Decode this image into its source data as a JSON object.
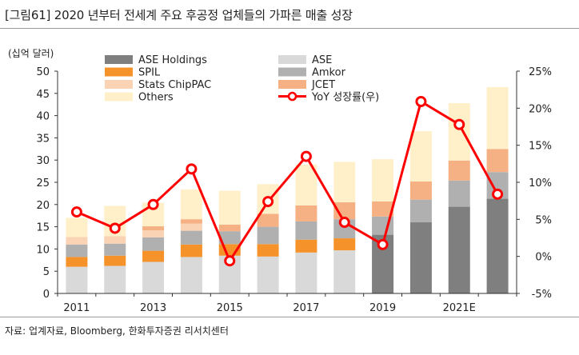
{
  "title": "[그림61]  2020 년부터 전세계 주요 후공정 업체들의 가파른 매출 성장",
  "source": "자료: 업계자료, Bloomberg, 한화투자증권 리서치센터",
  "colors": {
    "ASE Holdings": "#7f7f7f",
    "ASE": "#d9d9d9",
    "SPIL": "#f5922a",
    "Amkor": "#b0b0b0",
    "Stats ChipPAC": "#fad2b4",
    "JCET": "#f5b183",
    "Others": "#fff0c9",
    "YoY": "#ff0000"
  },
  "chart_data": {
    "type": "bar",
    "stacked": true,
    "ylabel": "(십억  달러)",
    "ylim": [
      0,
      50
    ],
    "yticks": [
      "0",
      "5",
      "10",
      "15",
      "20",
      "25",
      "30",
      "35",
      "40",
      "45",
      "50"
    ],
    "y2lim": [
      -5,
      25
    ],
    "y2ticks": [
      "-5%",
      "0%",
      "5%",
      "10%",
      "15%",
      "20%",
      "25%"
    ],
    "categories": [
      "2011",
      "2012",
      "2013",
      "2014",
      "2015",
      "2016",
      "2017",
      "2018",
      "2019",
      "2020",
      "2021E",
      "2022E"
    ],
    "xtick_labels": [
      "2011",
      "",
      "2013",
      "",
      "2015",
      "",
      "2017",
      "",
      "2019",
      "",
      "2021E",
      ""
    ],
    "series": [
      {
        "name": "ASE Holdings",
        "values": [
          0,
          0,
          0,
          0,
          0,
          0,
          0,
          0,
          13.2,
          16.0,
          19.5,
          21.3
        ]
      },
      {
        "name": "ASE",
        "values": [
          6.0,
          6.2,
          7.1,
          8.2,
          8.5,
          8.3,
          9.2,
          9.7,
          0,
          0,
          0,
          0
        ]
      },
      {
        "name": "SPIL",
        "values": [
          2.2,
          2.3,
          2.5,
          2.8,
          2.6,
          2.8,
          2.9,
          2.7,
          0,
          0,
          0,
          0
        ]
      },
      {
        "name": "Amkor",
        "values": [
          2.8,
          2.7,
          3.0,
          3.1,
          2.9,
          3.9,
          4.1,
          4.3,
          4.1,
          5.1,
          5.9,
          6.0
        ]
      },
      {
        "name": "Stats ChipPAC",
        "values": [
          1.7,
          1.7,
          1.6,
          1.6,
          0,
          0,
          0,
          0,
          0,
          0,
          0,
          0
        ]
      },
      {
        "name": "JCET",
        "values": [
          0,
          0,
          0.9,
          1.0,
          1.5,
          2.9,
          3.6,
          3.8,
          3.4,
          4.1,
          4.5,
          5.2
        ]
      },
      {
        "name": "Others",
        "values": [
          4.3,
          6.8,
          5.3,
          6.7,
          7.6,
          6.7,
          9.2,
          9.1,
          9.5,
          11.3,
          12.9,
          13.9
        ]
      }
    ],
    "line": {
      "name": "YoY 성장률(우)",
      "axis": "right",
      "values": [
        6.0,
        3.8,
        7.0,
        11.8,
        -0.6,
        7.4,
        13.5,
        4.6,
        1.6,
        20.9,
        17.8,
        8.4
      ]
    },
    "legend": [
      {
        "label": "ASE Holdings",
        "kind": "bar",
        "color": "#7f7f7f"
      },
      {
        "label": "ASE",
        "kind": "bar",
        "color": "#d9d9d9"
      },
      {
        "label": "SPIL",
        "kind": "bar",
        "color": "#f5922a"
      },
      {
        "label": "Amkor",
        "kind": "bar",
        "color": "#b0b0b0"
      },
      {
        "label": "Stats ChipPAC",
        "kind": "bar",
        "color": "#fad2b4"
      },
      {
        "label": "JCET",
        "kind": "bar",
        "color": "#f5b183"
      },
      {
        "label": "Others",
        "kind": "bar",
        "color": "#fff0c9"
      },
      {
        "label": "YoY 성장률(우)",
        "kind": "line",
        "color": "#ff0000"
      }
    ],
    "legend_position": "top-left",
    "grid": false
  }
}
